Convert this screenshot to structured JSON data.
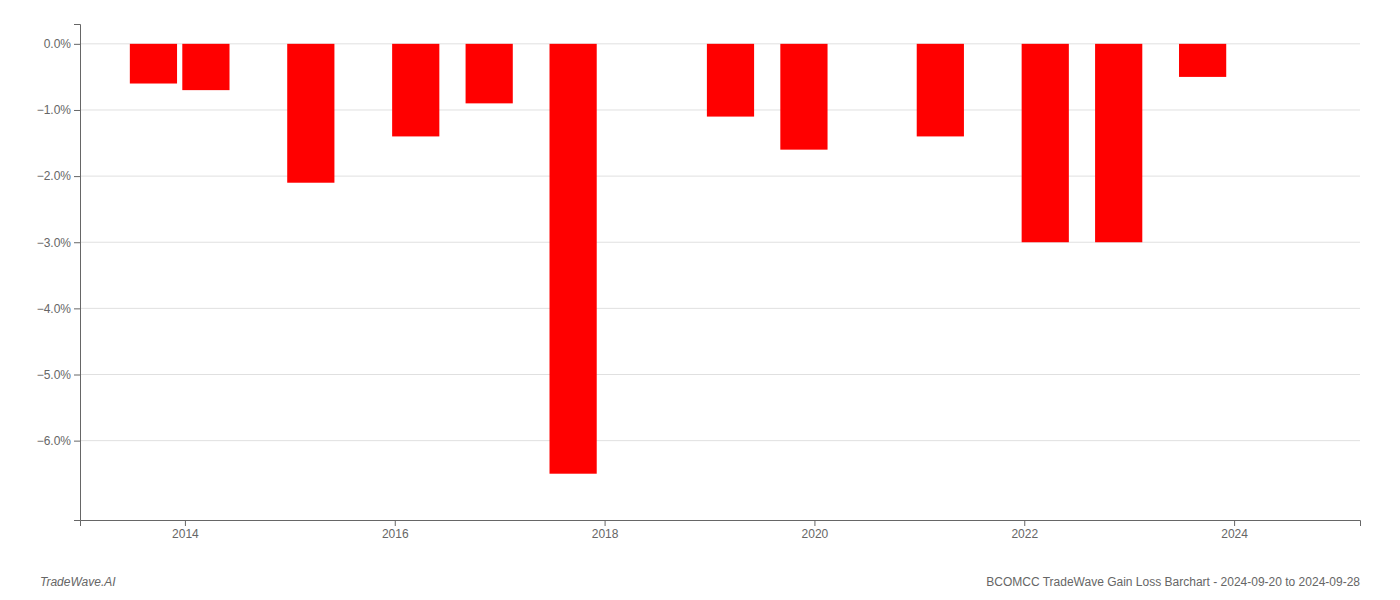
{
  "chart_data": {
    "type": "bar",
    "x": [
      2013.7,
      2014.2,
      2015.2,
      2016.2,
      2016.9,
      2017.7,
      2019.2,
      2019.9,
      2021.2,
      2022.2,
      2022.9,
      2023.7
    ],
    "values": [
      -0.006,
      -0.007,
      -0.021,
      -0.014,
      -0.009,
      -0.065,
      -0.011,
      -0.016,
      -0.014,
      -0.03,
      -0.03,
      -0.005
    ],
    "color": "#ff0000",
    "xlim": [
      2013.0,
      2025.2
    ],
    "xticks": [
      2014,
      2016,
      2018,
      2020,
      2022,
      2024
    ],
    "ylim": [
      -0.072,
      0.003
    ],
    "yticks": [
      {
        "value": 0.0,
        "label": "0.0%"
      },
      {
        "value": -0.01,
        "label": "−1.0%"
      },
      {
        "value": -0.02,
        "label": "−2.0%"
      },
      {
        "value": -0.03,
        "label": "−3.0%"
      },
      {
        "value": -0.04,
        "label": "−4.0%"
      },
      {
        "value": -0.05,
        "label": "−5.0%"
      },
      {
        "value": -0.06,
        "label": "−6.0%"
      }
    ],
    "grid": true,
    "annotations": [
      "TradeWave.AI",
      "BCOMCC TradeWave Gain Loss Barchart - 2024-09-20 to 2024-09-28"
    ]
  }
}
